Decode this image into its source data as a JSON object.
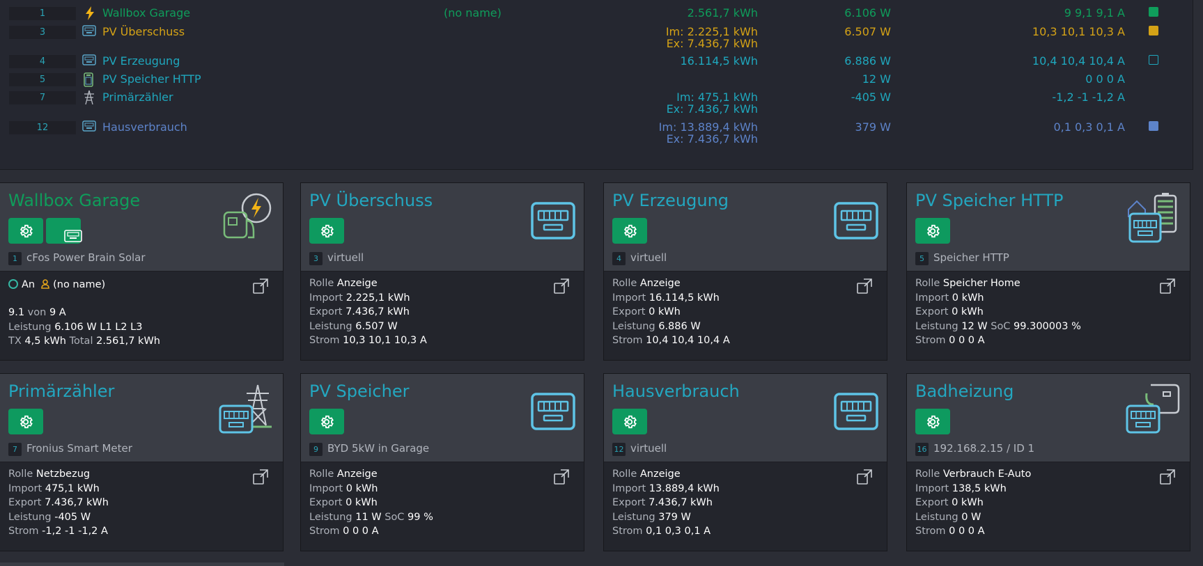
{
  "table": {
    "rows": [
      {
        "idx": "1",
        "name": "Wallbox Garage",
        "user": "(no name)",
        "energy": [
          "2.561,7 kWh"
        ],
        "power": "6.106 W",
        "current": "9 9,1 9,1 A",
        "color": "#0f9d5b",
        "icon": "lightning-icon",
        "square": "filled"
      },
      {
        "idx": "3",
        "name": "PV Überschuss",
        "user": "",
        "energy": [
          "Im: 2.225,1 kWh",
          "Ex: 7.436,7 kWh"
        ],
        "power": "6.507 W",
        "current": "10,3 10,1 10,3 A",
        "color": "#d4a216",
        "icon": "meter-icon",
        "square": "filled"
      },
      {
        "idx": "4",
        "name": "PV Erzeugung",
        "user": "",
        "energy": [
          "16.114,5 kWh"
        ],
        "power": "6.886 W",
        "current": "10,4 10,4 10,4 A",
        "color": "#1fa7bd",
        "icon": "meter-icon",
        "square": "outline"
      },
      {
        "idx": "5",
        "name": "PV Speicher HTTP",
        "user": "",
        "energy": [],
        "power": "12 W",
        "current": "0 0 0 A",
        "color": "#1fa7bd",
        "icon": "battery-icon",
        "square": "none"
      },
      {
        "idx": "7",
        "name": "Primärzähler",
        "user": "",
        "energy": [
          "Im: 475,1 kWh",
          "Ex: 7.436,7 kWh"
        ],
        "power": "-405 W",
        "current": "-1,2 -1 -1,2 A",
        "color": "#1fa7bd",
        "icon": "power-tower-icon",
        "square": "none"
      },
      {
        "idx": "12",
        "name": "Hausverbrauch",
        "user": "",
        "energy": [
          "Im: 13.889,4 kWh",
          "Ex: 7.436,7 kWh"
        ],
        "power": "379 W",
        "current": "0,1 0,3 0,1 A",
        "color": "#5d83c9",
        "icon": "meter-icon",
        "square": "filled"
      }
    ]
  },
  "cards": [
    {
      "title": "Wallbox Garage",
      "title_color": "#0f9d5b",
      "idx": "1",
      "subtitle": "cFos Power Brain Solar",
      "icon": "wallbox-charger-icon",
      "extra_button": true,
      "status": {
        "state": "An",
        "user": "(no name)"
      },
      "lines": [
        {
          "parts": [
            {
              "v": "9.1",
              "b": true
            },
            {
              "v": " von ",
              "b": false
            },
            {
              "v": "9 A",
              "b": true
            }
          ]
        },
        {
          "parts": [
            {
              "v": "Leistung ",
              "b": false
            },
            {
              "v": "6.106 W L1 L2 L3",
              "b": true
            }
          ]
        },
        {
          "parts": [
            {
              "v": "TX ",
              "b": false
            },
            {
              "v": "4,5 kWh",
              "b": true
            },
            {
              "v": " Total ",
              "b": false
            },
            {
              "v": "2.561,7 kWh",
              "b": true
            }
          ]
        }
      ]
    },
    {
      "title": "PV Überschuss",
      "title_color": "#23a7c0",
      "idx": "3",
      "subtitle": "virtuell",
      "icon": "meter-icon",
      "extra_button": false,
      "lines": [
        {
          "parts": [
            {
              "v": "Rolle ",
              "b": false
            },
            {
              "v": "Anzeige",
              "b": true
            }
          ]
        },
        {
          "parts": [
            {
              "v": "Import ",
              "b": false
            },
            {
              "v": "2.225,1 kWh",
              "b": true
            }
          ]
        },
        {
          "parts": [
            {
              "v": "Export ",
              "b": false
            },
            {
              "v": "7.436,7 kWh",
              "b": true
            }
          ]
        },
        {
          "parts": [
            {
              "v": "Leistung ",
              "b": false
            },
            {
              "v": "6.507 W",
              "b": true
            }
          ]
        },
        {
          "parts": [
            {
              "v": "Strom ",
              "b": false
            },
            {
              "v": "10,3 10,1 10,3 A",
              "b": true
            }
          ]
        }
      ]
    },
    {
      "title": "PV Erzeugung",
      "title_color": "#23a7c0",
      "idx": "4",
      "subtitle": "virtuell",
      "icon": "meter-icon",
      "extra_button": false,
      "lines": [
        {
          "parts": [
            {
              "v": "Rolle ",
              "b": false
            },
            {
              "v": "Anzeige",
              "b": true
            }
          ]
        },
        {
          "parts": [
            {
              "v": "Import ",
              "b": false
            },
            {
              "v": "16.114,5 kWh",
              "b": true
            }
          ]
        },
        {
          "parts": [
            {
              "v": "Export ",
              "b": false
            },
            {
              "v": "0 kWh",
              "b": true
            }
          ]
        },
        {
          "parts": [
            {
              "v": "Leistung ",
              "b": false
            },
            {
              "v": "6.886 W",
              "b": true
            }
          ]
        },
        {
          "parts": [
            {
              "v": "Strom ",
              "b": false
            },
            {
              "v": "10,4 10,4 10,4 A",
              "b": true
            }
          ]
        }
      ]
    },
    {
      "title": "PV Speicher HTTP",
      "title_color": "#23a7c0",
      "idx": "5",
      "subtitle": "Speicher HTTP",
      "icon": "home-battery-meter-icon",
      "extra_button": false,
      "lines": [
        {
          "parts": [
            {
              "v": "Rolle ",
              "b": false
            },
            {
              "v": "Speicher Home",
              "b": true
            }
          ]
        },
        {
          "parts": [
            {
              "v": "Import ",
              "b": false
            },
            {
              "v": "0 kWh",
              "b": true
            }
          ]
        },
        {
          "parts": [
            {
              "v": "Export ",
              "b": false
            },
            {
              "v": "0 kWh",
              "b": true
            }
          ]
        },
        {
          "parts": [
            {
              "v": "Leistung ",
              "b": false
            },
            {
              "v": "12 W",
              "b": true
            },
            {
              "v": " SoC ",
              "b": false
            },
            {
              "v": "99.300003 %",
              "b": true
            }
          ]
        },
        {
          "parts": [
            {
              "v": "Strom ",
              "b": false
            },
            {
              "v": "0 0 0 A",
              "b": true
            }
          ]
        }
      ]
    },
    {
      "title": "Primärzähler",
      "title_color": "#23a7c0",
      "idx": "7",
      "subtitle": "Fronius Smart Meter",
      "icon": "power-tower-meter-icon",
      "extra_button": false,
      "lines": [
        {
          "parts": [
            {
              "v": "Rolle ",
              "b": false
            },
            {
              "v": "Netzbezug",
              "b": true
            }
          ]
        },
        {
          "parts": [
            {
              "v": "Import ",
              "b": false
            },
            {
              "v": "475,1 kWh",
              "b": true
            }
          ]
        },
        {
          "parts": [
            {
              "v": "Export ",
              "b": false
            },
            {
              "v": "7.436,7 kWh",
              "b": true
            }
          ]
        },
        {
          "parts": [
            {
              "v": "Leistung ",
              "b": false
            },
            {
              "v": "-405 W",
              "b": true
            }
          ]
        },
        {
          "parts": [
            {
              "v": "Strom ",
              "b": false
            },
            {
              "v": "-1,2 -1 -1,2 A",
              "b": true
            }
          ]
        }
      ]
    },
    {
      "title": "PV Speicher",
      "title_color": "#23a7c0",
      "idx": "9",
      "subtitle": "BYD 5kW in Garage",
      "icon": "meter-icon",
      "extra_button": false,
      "lines": [
        {
          "parts": [
            {
              "v": "Rolle ",
              "b": false
            },
            {
              "v": "Anzeige",
              "b": true
            }
          ]
        },
        {
          "parts": [
            {
              "v": "Import ",
              "b": false
            },
            {
              "v": "0 kWh",
              "b": true
            }
          ]
        },
        {
          "parts": [
            {
              "v": "Export ",
              "b": false
            },
            {
              "v": "0 kWh",
              "b": true
            }
          ]
        },
        {
          "parts": [
            {
              "v": "Leistung ",
              "b": false
            },
            {
              "v": "11 W",
              "b": true
            },
            {
              "v": " SoC ",
              "b": false
            },
            {
              "v": "99 %",
              "b": true
            }
          ]
        },
        {
          "parts": [
            {
              "v": "Strom ",
              "b": false
            },
            {
              "v": "0 0 0 A",
              "b": true
            }
          ]
        }
      ]
    },
    {
      "title": "Hausverbrauch",
      "title_color": "#23a7c0",
      "idx": "12",
      "subtitle": "virtuell",
      "icon": "meter-icon",
      "extra_button": false,
      "lines": [
        {
          "parts": [
            {
              "v": "Rolle ",
              "b": false
            },
            {
              "v": "Anzeige",
              "b": true
            }
          ]
        },
        {
          "parts": [
            {
              "v": "Import ",
              "b": false
            },
            {
              "v": "13.889,4 kWh",
              "b": true
            }
          ]
        },
        {
          "parts": [
            {
              "v": "Export ",
              "b": false
            },
            {
              "v": "7.436,7 kWh",
              "b": true
            }
          ]
        },
        {
          "parts": [
            {
              "v": "Leistung ",
              "b": false
            },
            {
              "v": "379 W",
              "b": true
            }
          ]
        },
        {
          "parts": [
            {
              "v": "Strom ",
              "b": false
            },
            {
              "v": "0,1 0,3 0,1 A",
              "b": true
            }
          ]
        }
      ]
    },
    {
      "title": "Badheizung",
      "title_color": "#23a7c0",
      "idx": "16",
      "subtitle": "192.168.2.15 / ID 1",
      "icon": "plug-meter-icon",
      "extra_button": false,
      "lines": [
        {
          "parts": [
            {
              "v": "Rolle ",
              "b": false
            },
            {
              "v": "Verbrauch E-Auto",
              "b": true
            }
          ]
        },
        {
          "parts": [
            {
              "v": "Import ",
              "b": false
            },
            {
              "v": "138,5 kWh",
              "b": true
            }
          ]
        },
        {
          "parts": [
            {
              "v": "Export ",
              "b": false
            },
            {
              "v": "0 kWh",
              "b": true
            }
          ]
        },
        {
          "parts": [
            {
              "v": "Leistung ",
              "b": false
            },
            {
              "v": "0 W",
              "b": true
            }
          ]
        },
        {
          "parts": [
            {
              "v": "Strom ",
              "b": false
            },
            {
              "v": "0 0 0 A",
              "b": true
            }
          ]
        }
      ]
    }
  ]
}
